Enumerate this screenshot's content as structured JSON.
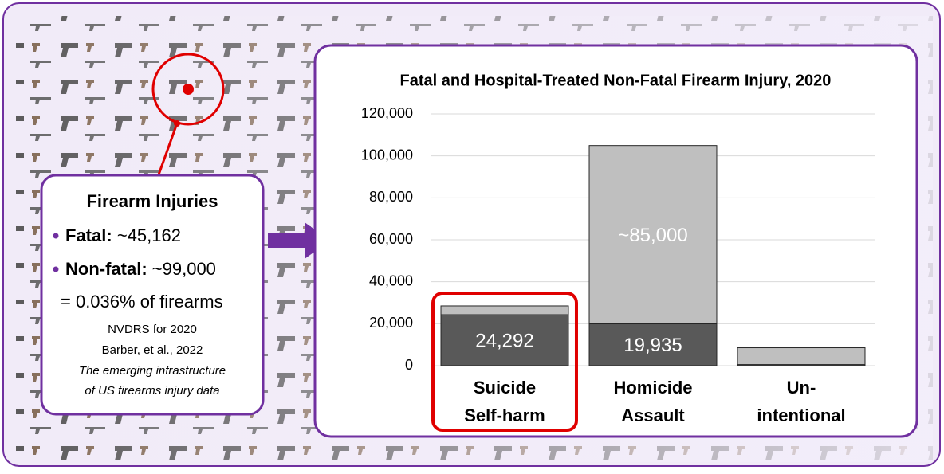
{
  "chart_data": {
    "type": "stacked_bar",
    "title": "Fatal and Hospital-Treated Non-Fatal Firearm Injury, 2020",
    "categories": [
      [
        "Suicide",
        "Self-harm"
      ],
      [
        "Homicide",
        "Assault"
      ],
      [
        "Un-",
        "intentional"
      ]
    ],
    "series": [
      {
        "color": "#595959",
        "values": [
          24292,
          19935,
          535
        ],
        "value_labels": [
          "24,292",
          "19,935",
          null
        ]
      },
      {
        "color": "#bfbfbf",
        "values": [
          4200,
          85000,
          8000
        ],
        "value_labels": [
          null,
          "~85,000",
          null
        ]
      }
    ],
    "ylim": [
      0,
      120000
    ],
    "yticks": [
      0,
      {
        "value": 20000,
        "label": "20,000"
      },
      {
        "value": 40000,
        "label": "40,000"
      },
      {
        "value": 60000,
        "label": "60,000"
      },
      {
        "value": 80000,
        "label": "80,000"
      },
      {
        "value": 100000,
        "label": "100,000"
      },
      {
        "value": 120000,
        "label": "120,000"
      }
    ],
    "grid": true,
    "highlight_category": 0
  },
  "callout": {
    "title": "Firearm Injuries",
    "items": [
      {
        "label": "Fatal:",
        "value": "~45,162"
      },
      {
        "label": "Non-fatal:",
        "value": "~99,000"
      }
    ],
    "ratio": "= 0.036% of firearms",
    "sources": [
      "NVDRS for 2020",
      "Barber, et al., 2022"
    ],
    "citation": [
      "The emerging infrastructure",
      "of US firearms injury data"
    ]
  }
}
